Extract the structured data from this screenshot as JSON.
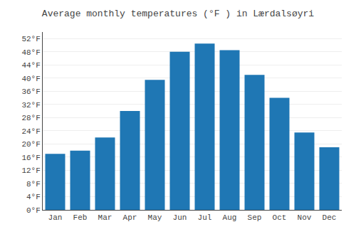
{
  "chart_data": {
    "type": "bar",
    "title": "Average monthly temperatures (°F ) in Lærdalsøyri",
    "categories": [
      "Jan",
      "Feb",
      "Mar",
      "Apr",
      "May",
      "Jun",
      "Jul",
      "Aug",
      "Sep",
      "Oct",
      "Nov",
      "Dec"
    ],
    "values": [
      17,
      18,
      22,
      30,
      39.5,
      48,
      50.5,
      48.5,
      41,
      34,
      23.5,
      19
    ],
    "ylim": [
      0,
      54
    ],
    "yticks": [
      {
        "value": 0,
        "label": "0°F"
      },
      {
        "value": 4,
        "label": "4°F"
      },
      {
        "value": 8,
        "label": "8°F"
      },
      {
        "value": 12,
        "label": "12°F"
      },
      {
        "value": 16,
        "label": "16°F"
      },
      {
        "value": 20,
        "label": "20°F"
      },
      {
        "value": 24,
        "label": "24°F"
      },
      {
        "value": 28,
        "label": "28°F"
      },
      {
        "value": 32,
        "label": "32°F"
      },
      {
        "value": 36,
        "label": "36°F"
      },
      {
        "value": 40,
        "label": "40°F"
      },
      {
        "value": 44,
        "label": "44°F"
      },
      {
        "value": 48,
        "label": "48°F"
      },
      {
        "value": 52,
        "label": "52°F"
      }
    ],
    "grid": true
  }
}
